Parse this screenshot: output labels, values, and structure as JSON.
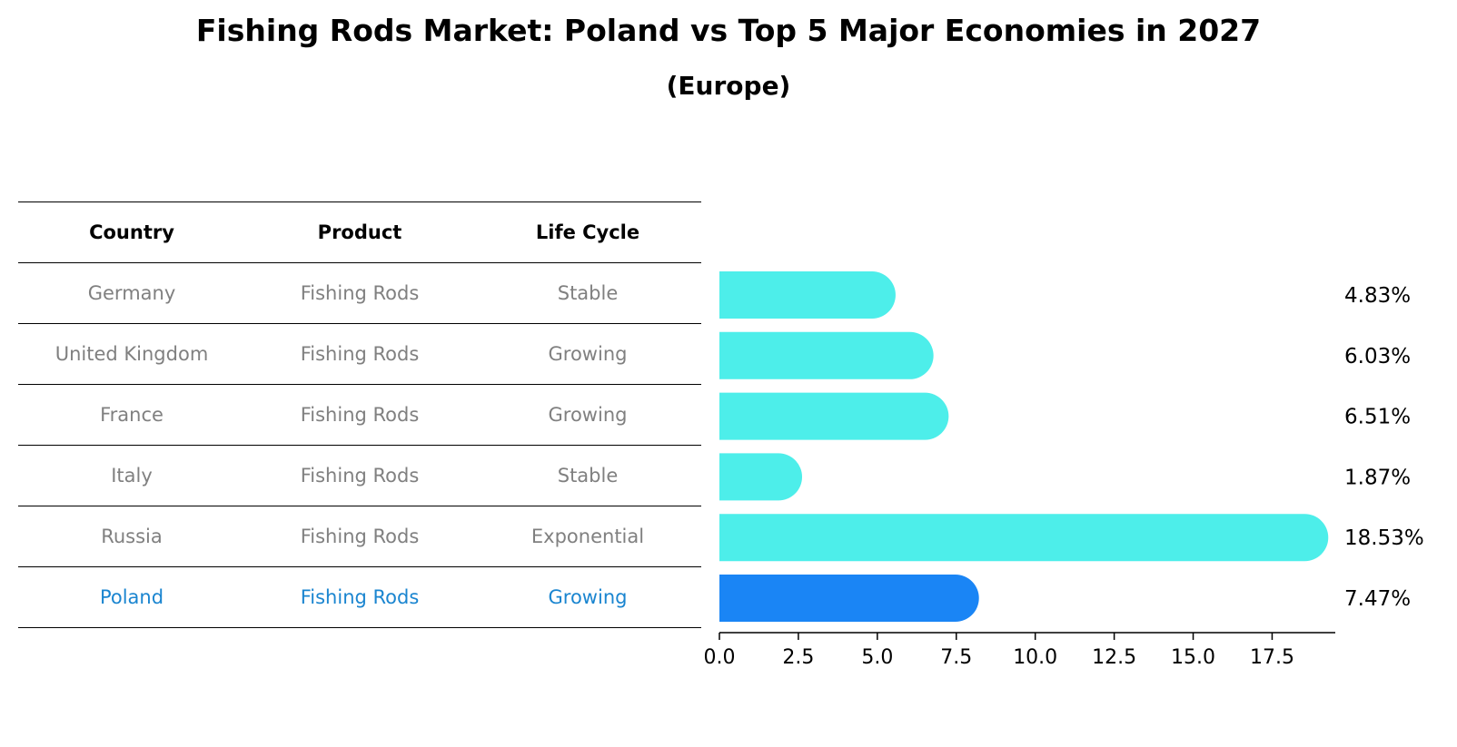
{
  "title": "Fishing Rods Market: Poland vs Top 5 Major Economies in 2027",
  "subtitle": "(Europe)",
  "table": {
    "headers": [
      "Country",
      "Product",
      "Life Cycle"
    ],
    "rows": [
      {
        "country": "Germany",
        "product": "Fishing Rods",
        "life_cycle": "Stable",
        "highlight": false
      },
      {
        "country": "United Kingdom",
        "product": "Fishing Rods",
        "life_cycle": "Growing",
        "highlight": false
      },
      {
        "country": "France",
        "product": "Fishing Rods",
        "life_cycle": "Growing",
        "highlight": false
      },
      {
        "country": "Italy",
        "product": "Fishing Rods",
        "life_cycle": "Stable",
        "highlight": false
      },
      {
        "country": "Russia",
        "product": "Fishing Rods",
        "life_cycle": "Exponential",
        "highlight": false
      },
      {
        "country": "Poland",
        "product": "Fishing Rods",
        "life_cycle": "Growing",
        "highlight": true
      }
    ]
  },
  "chart_data": {
    "type": "bar",
    "orientation": "horizontal",
    "categories": [
      "Germany",
      "United Kingdom",
      "France",
      "Italy",
      "Russia",
      "Poland"
    ],
    "values": [
      4.83,
      6.03,
      6.51,
      1.87,
      18.53,
      7.47
    ],
    "labels": [
      "4.83%",
      "6.03%",
      "6.51%",
      "1.87%",
      "18.53%",
      "7.47%"
    ],
    "highlight_index": 5,
    "xlim": [
      0,
      19.5
    ],
    "xticks": [
      0.0,
      2.5,
      5.0,
      7.5,
      10.0,
      12.5,
      15.0,
      17.5
    ],
    "xtick_labels": [
      "0.0",
      "2.5",
      "5.0",
      "7.5",
      "10.0",
      "12.5",
      "15.0",
      "17.5"
    ],
    "colors": {
      "bar": "#4deeea",
      "highlight": "#1a85f5",
      "axis": "#000000",
      "label": "#000000"
    }
  }
}
